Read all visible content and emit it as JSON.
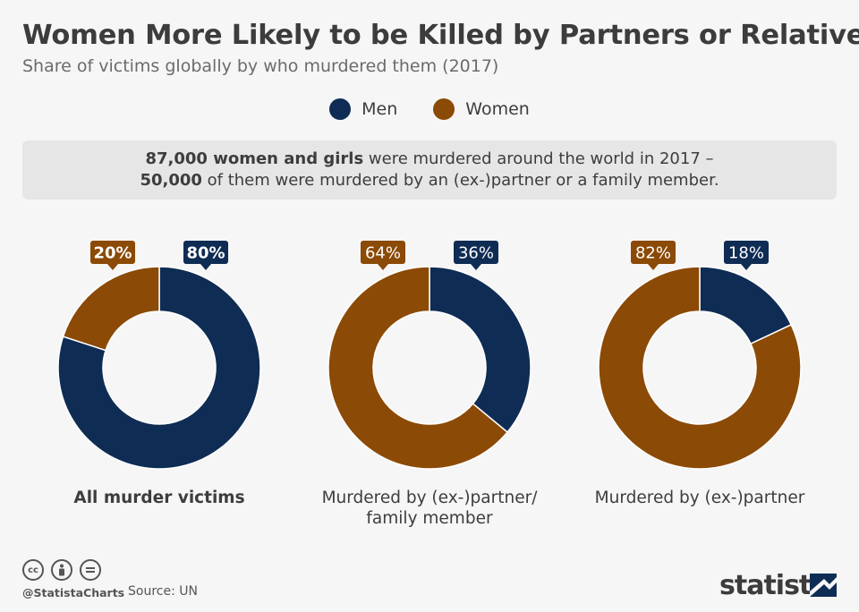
{
  "title": "Women More Likely to be Killed by Partners or Relatives",
  "subtitle": "Share of victims globally by who murdered them (2017)",
  "legend": [
    {
      "label": "Men",
      "color": "#0f2c54"
    },
    {
      "label": "Women",
      "color": "#8b4a06"
    }
  ],
  "info": {
    "line1_bold": "87,000 women and girls",
    "line1_rest": " were murdered around the world in 2017 –",
    "line2_bold": "50,000",
    "line2_rest": " of them were murdered by an (ex-)partner or a family member."
  },
  "chart_data": [
    {
      "type": "pie",
      "label": "All murder victims",
      "slices": [
        {
          "name": "Men",
          "value": 80,
          "display": "80%"
        },
        {
          "name": "Women",
          "value": 20,
          "display": "20%"
        }
      ]
    },
    {
      "type": "pie",
      "label": "Murdered by (ex-)partner/ family member",
      "label_lines": [
        "Murdered by (ex-)partner/",
        "family member"
      ],
      "slices": [
        {
          "name": "Men",
          "value": 36,
          "display": "36%"
        },
        {
          "name": "Women",
          "value": 64,
          "display": "64%"
        }
      ]
    },
    {
      "type": "pie",
      "label": "Murdered by (ex-)partner",
      "slices": [
        {
          "name": "Men",
          "value": 18,
          "display": "18%"
        },
        {
          "name": "Women",
          "value": 82,
          "display": "82%"
        }
      ]
    }
  ],
  "footer": {
    "cc_icons": [
      "creative-commons-icon",
      "attribution-icon",
      "no-derivatives-icon"
    ],
    "handle": "@StatistaCharts",
    "source": "Source: UN",
    "brand": "statista"
  }
}
